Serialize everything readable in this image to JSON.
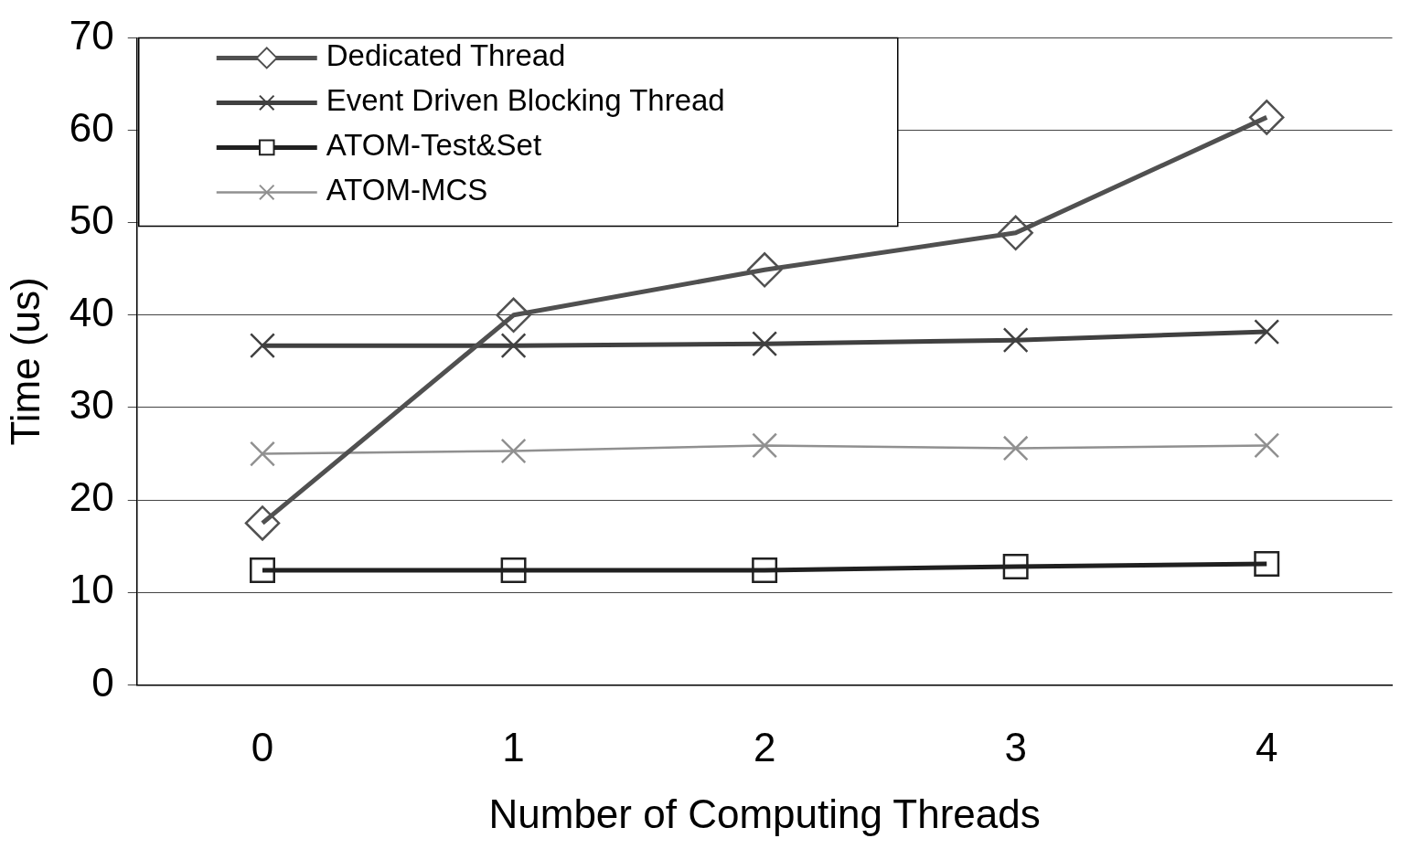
{
  "chart_data": {
    "type": "line",
    "xlabel": "Number of Computing Threads",
    "ylabel": "Time (us)",
    "categories": [
      "0",
      "1",
      "2",
      "3",
      "4"
    ],
    "ylim": [
      0,
      70
    ],
    "yticks": [
      0,
      10,
      20,
      30,
      40,
      50,
      60,
      70
    ],
    "grid": "y",
    "legend": "top left",
    "line_style": "solid",
    "series": [
      {
        "name": "Dedicated Thread",
        "color": "#505050",
        "marker": "diamond",
        "values": [
          17.5,
          40.0,
          44.9,
          48.9,
          61.4
        ]
      },
      {
        "name": "Event Driven Blocking Thread",
        "color": "#404040",
        "marker": "cross",
        "values": [
          36.7,
          36.7,
          36.9,
          37.3,
          38.2
        ]
      },
      {
        "name": "ATOM-Test&Set",
        "color": "#202020",
        "marker": "square",
        "values": [
          12.4,
          12.4,
          12.4,
          12.8,
          13.1
        ]
      },
      {
        "name": "ATOM-MCS",
        "color": "#909090",
        "marker": "cross",
        "values": [
          25.0,
          25.3,
          25.9,
          25.6,
          25.9
        ]
      }
    ]
  }
}
